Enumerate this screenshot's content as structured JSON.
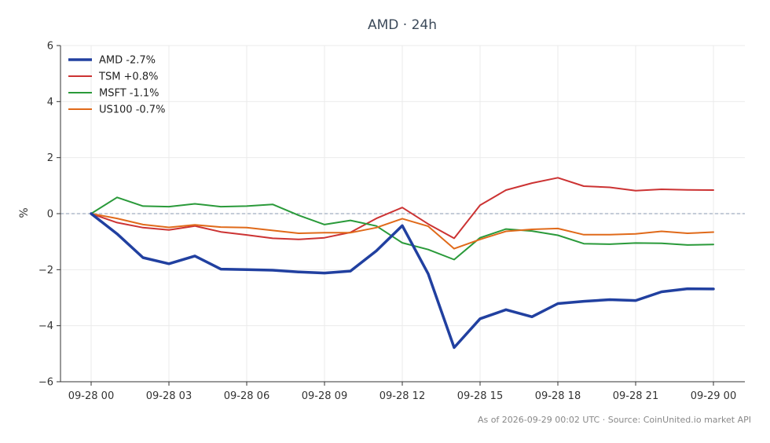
{
  "chart_data": {
    "type": "line",
    "title": "AMD · 24h",
    "xlabel": "",
    "ylabel": "%",
    "ylim": [
      -6,
      6
    ],
    "yticks": [
      -6,
      -4,
      -2,
      0,
      2,
      4,
      6
    ],
    "ytick_labels": [
      "−6",
      "−4",
      "−2",
      "0",
      "2",
      "4",
      "6"
    ],
    "xticks": [
      "09-28 00",
      "09-28 03",
      "09-28 06",
      "09-28 09",
      "09-28 12",
      "09-28 15",
      "09-28 18",
      "09-28 21",
      "09-29 00"
    ],
    "x": [
      "09-28 00",
      "09-28 01",
      "09-28 02",
      "09-28 03",
      "09-28 04",
      "09-28 05",
      "09-28 06",
      "09-28 07",
      "09-28 08",
      "09-28 09",
      "09-28 10",
      "09-28 11",
      "09-28 12",
      "09-28 13",
      "09-28 14",
      "09-28 15",
      "09-28 16",
      "09-28 17",
      "09-28 18",
      "09-28 19",
      "09-28 20",
      "09-28 21",
      "09-28 22",
      "09-28 23",
      "09-29 00"
    ],
    "grid": true,
    "zero_line": true,
    "legend_position": "top-left",
    "series": [
      {
        "name": "AMD -2.7%",
        "color": "#2140a0",
        "width": 3.5,
        "values": [
          0,
          -0.72,
          -1.57,
          -1.79,
          -1.51,
          -1.98,
          -2.0,
          -2.02,
          -2.08,
          -2.12,
          -2.05,
          -1.33,
          -0.43,
          -2.15,
          -4.78,
          -3.75,
          -3.43,
          -3.68,
          -3.21,
          -3.13,
          -3.07,
          -3.1,
          -2.79,
          -2.68,
          -2.69
        ]
      },
      {
        "name": "TSM +0.8%",
        "color": "#cc3333",
        "width": 2,
        "values": [
          0,
          -0.32,
          -0.5,
          -0.58,
          -0.44,
          -0.65,
          -0.76,
          -0.88,
          -0.92,
          -0.86,
          -0.67,
          -0.17,
          0.22,
          -0.37,
          -0.88,
          0.3,
          0.84,
          1.09,
          1.28,
          0.98,
          0.94,
          0.82,
          0.87,
          0.85,
          0.84
        ]
      },
      {
        "name": "MSFT -1.1%",
        "color": "#2a9a3a",
        "width": 2,
        "values": [
          0,
          0.58,
          0.27,
          0.25,
          0.35,
          0.25,
          0.27,
          0.33,
          -0.06,
          -0.39,
          -0.24,
          -0.44,
          -1.04,
          -1.28,
          -1.64,
          -0.86,
          -0.55,
          -0.62,
          -0.77,
          -1.07,
          -1.09,
          -1.05,
          -1.06,
          -1.12,
          -1.1
        ]
      },
      {
        "name": "US100 -0.7%",
        "color": "#e06a1a",
        "width": 2,
        "values": [
          0,
          -0.17,
          -0.39,
          -0.49,
          -0.4,
          -0.48,
          -0.5,
          -0.6,
          -0.7,
          -0.68,
          -0.68,
          -0.5,
          -0.18,
          -0.45,
          -1.25,
          -0.92,
          -0.63,
          -0.56,
          -0.53,
          -0.75,
          -0.75,
          -0.72,
          -0.63,
          -0.7,
          -0.66
        ]
      }
    ]
  },
  "footer": "As of 2026-09-29 00:02 UTC · Source: CoinUnited.io market API",
  "colors": {
    "grid": "#ebebeb",
    "axis": "#333333",
    "zero_line": "#8a9ab0"
  }
}
